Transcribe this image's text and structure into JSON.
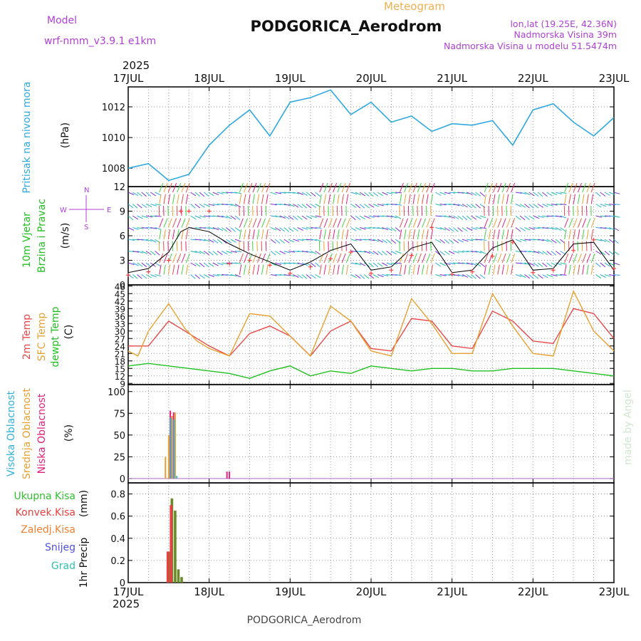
{
  "header": {
    "model_label": "Model",
    "model_name": "wrf-nmm_v3.9.1  e1km",
    "product": "Meteogram",
    "station": "PODGORICA_Aerodrom",
    "lonlat": "lon,lat (19.25E, 42.36N)",
    "elevation": "Nadmorska Visina 39m",
    "model_elevation": "Nadmorska Visina u modelu 51.5474m"
  },
  "footer": {
    "station": "PODGORICA_Aerodrom",
    "credit": "made by Angel"
  },
  "time_axis": {
    "year": "2025",
    "labels": [
      "17JUL",
      "18JUL",
      "19JUL",
      "20JUL",
      "21JUL",
      "22JUL",
      "23JUL"
    ]
  },
  "colors": {
    "pressure": "#30a8e0",
    "wind_speed": "#000000",
    "gust": "#ff4040",
    "t2m": "#e84848",
    "sfc_temp": "#e8a030",
    "dewpoint": "#20c020",
    "cloud_high": "#30b0e0",
    "cloud_mid": "#e8a030",
    "cloud_low": "#e0207a",
    "precip_total": "#30c030",
    "precip_conv": "#e84040",
    "precip_frz": "#f08030",
    "precip_snow": "#5050e0",
    "precip_grad": "#30c0b0"
  },
  "chart_data": [
    {
      "type": "line",
      "panel": "pressure",
      "ylabel_main": "Pritisak na nivou mora",
      "ylabel_unit": "(hPa)",
      "yticks": [
        1008,
        1010,
        1012
      ],
      "ylim": [
        1006.8,
        1013.3
      ],
      "grid": true,
      "series": [
        {
          "x_days": [
            0,
            0.25,
            0.5,
            0.75,
            1,
            1.25,
            1.5,
            1.75,
            2,
            2.25,
            2.5,
            2.75,
            3,
            3.25,
            3.5,
            3.75,
            4,
            4.25,
            4.5,
            4.75,
            5,
            5.25,
            5.5,
            5.75,
            6
          ],
          "values": [
            1008,
            1008.3,
            1007.2,
            1007.6,
            1009.5,
            1010.8,
            1011.8,
            1010.1,
            1012.3,
            1012.6,
            1013.1,
            1011.5,
            1012.3,
            1011,
            1011.4,
            1010.4,
            1010.9,
            1010.8,
            1011.1,
            1009.5,
            1011.8,
            1012.2,
            1011,
            1010.1,
            1011.3
          ]
        }
      ]
    },
    {
      "type": "line",
      "panel": "wind",
      "ylabel_main": "10m Vjetar",
      "ylabel_sub": "Brzina i Pravac",
      "ylabel_unit": "(m/s)",
      "compass": {
        "n": "N",
        "s": "S",
        "w": "W",
        "e": "E"
      },
      "yticks": [
        0,
        3,
        6,
        9,
        12
      ],
      "ylim": [
        0,
        12
      ],
      "grid": true,
      "series": [
        {
          "name": "speed",
          "x_days": [
            0,
            0.25,
            0.5,
            0.65,
            0.75,
            1,
            1.25,
            1.5,
            1.75,
            2,
            2.25,
            2.5,
            2.75,
            3,
            3.25,
            3.5,
            3.75,
            4,
            4.25,
            4.5,
            4.75,
            5,
            5.25,
            5.5,
            5.75,
            6
          ],
          "values": [
            1.5,
            2,
            4,
            6.5,
            7,
            6.5,
            5,
            3.8,
            2.8,
            1.8,
            2.8,
            4.2,
            5,
            1.8,
            2.2,
            4.5,
            5.2,
            1.5,
            1.8,
            4.5,
            5.5,
            1.8,
            2,
            5,
            5.2,
            1.8
          ]
        },
        {
          "name": "gust",
          "x_days": [
            0,
            0.25,
            0.5,
            0.65,
            0.75,
            1,
            1.25,
            1.5,
            1.75,
            2,
            2.25,
            2.5,
            2.75,
            3,
            3.25,
            3.5,
            3.75,
            4,
            4.25,
            4.5,
            4.75,
            5,
            5.25,
            5.5,
            5.75,
            6
          ],
          "values": [
            1.2,
            1.6,
            3,
            9,
            9,
            9,
            2.6,
            3,
            2.4,
            1.4,
            2.2,
            3.2,
            4,
            1.4,
            1.8,
            3.6,
            7,
            1.3,
            1.6,
            3.5,
            5.2,
            1.5,
            1.8,
            4.2,
            5.5,
            2
          ]
        }
      ]
    },
    {
      "type": "line",
      "panel": "temperature",
      "ylabel_main": "2m Temp",
      "ylabel_sub": "SFC Temp",
      "ylabel_sub2": "dewpt Temp",
      "ylabel_unit": "(C)",
      "yticks": [
        9,
        12,
        15,
        18,
        21,
        24,
        27,
        30,
        33,
        36,
        39,
        42,
        45,
        48
      ],
      "ylim": [
        8.5,
        48.5
      ],
      "grid": true,
      "series": [
        {
          "name": "2m Temp",
          "x_days": [
            0,
            0.25,
            0.5,
            0.7,
            0.85,
            1,
            1.25,
            1.5,
            1.75,
            2,
            2.25,
            2.5,
            2.75,
            3,
            3.25,
            3.5,
            3.75,
            4,
            4.25,
            4.5,
            4.75,
            5,
            5.25,
            5.5,
            5.75,
            6
          ],
          "values": [
            24,
            24,
            34,
            30,
            27,
            24,
            20,
            29,
            32,
            28,
            20,
            30,
            34,
            23,
            22,
            35,
            34,
            24,
            23,
            38,
            34,
            26,
            25,
            39,
            37,
            27
          ]
        },
        {
          "name": "SFC Temp",
          "x_days": [
            0,
            0.12,
            0.25,
            0.5,
            0.7,
            0.85,
            1,
            1.25,
            1.5,
            1.75,
            2,
            2.25,
            2.5,
            2.75,
            3,
            3.25,
            3.5,
            3.75,
            4,
            4.25,
            4.5,
            4.75,
            5,
            5.25,
            5.5,
            5.75,
            6
          ],
          "values": [
            22,
            20,
            30,
            41,
            31,
            26,
            23,
            20,
            37,
            36,
            28,
            20,
            40,
            34,
            22,
            20,
            43,
            33,
            21,
            21,
            45,
            32,
            21,
            20,
            46,
            30,
            22
          ]
        },
        {
          "name": "dewpt Temp",
          "x_days": [
            0,
            0.25,
            0.5,
            0.75,
            1,
            1.25,
            1.5,
            1.75,
            2,
            2.25,
            2.5,
            2.75,
            3,
            3.25,
            3.5,
            3.75,
            4,
            4.25,
            4.5,
            4.75,
            5,
            5.25,
            5.5,
            5.75,
            6
          ],
          "values": [
            16,
            17,
            16,
            15,
            14,
            13,
            11,
            14,
            16,
            12,
            14,
            13,
            16,
            15,
            14,
            15,
            15,
            14,
            14,
            15,
            15,
            15,
            14,
            13,
            12
          ]
        }
      ]
    },
    {
      "type": "bar",
      "panel": "cloud",
      "ylabel_main": "Visoka Oblacnost",
      "ylabel_sub": "Srednja Oblacnost",
      "ylabel_sub2": "Niska Oblacnost",
      "ylabel_unit": "(%)",
      "yticks": [
        0,
        25,
        50,
        75,
        100
      ],
      "ylim": [
        -5,
        108
      ],
      "grid": true,
      "series": [
        {
          "name": "Srednja Oblacnost",
          "x_days": [
            0.46,
            0.5,
            0.54,
            0.58
          ],
          "values": [
            25,
            50,
            72,
            76
          ]
        },
        {
          "name": "Niska Oblacnost",
          "x_days": [
            0.52,
            0.56,
            1.22,
            1.25
          ],
          "values": [
            78,
            76,
            8,
            8
          ]
        },
        {
          "name": "Visoka Oblacnost",
          "x_days": [
            0.525,
            0.565,
            0.6
          ],
          "values": [
            70,
            68,
            3
          ]
        }
      ]
    },
    {
      "type": "bar",
      "panel": "precip",
      "ylabel_main": "1hr Precip",
      "ylabel_unit": "(mm)",
      "legend": [
        "Ukupna Kisa",
        "Konvek.Kisa",
        "Zaledj.Kisa",
        "Snijeg",
        "Grad"
      ],
      "yticks": [
        0,
        0.2,
        0.4,
        0.6,
        0.8
      ],
      "ylim": [
        0,
        0.9
      ],
      "grid": true,
      "series": [
        {
          "name": "Ukupna Kisa",
          "x_days": [
            0.5,
            0.54,
            0.58,
            0.62,
            0.66
          ],
          "values": [
            0.28,
            0.76,
            0.65,
            0.12,
            0.05
          ]
        },
        {
          "name": "Konvek.Kisa",
          "x_days": [
            0.49,
            0.53
          ],
          "values": [
            0.28,
            0.7
          ]
        }
      ]
    }
  ]
}
